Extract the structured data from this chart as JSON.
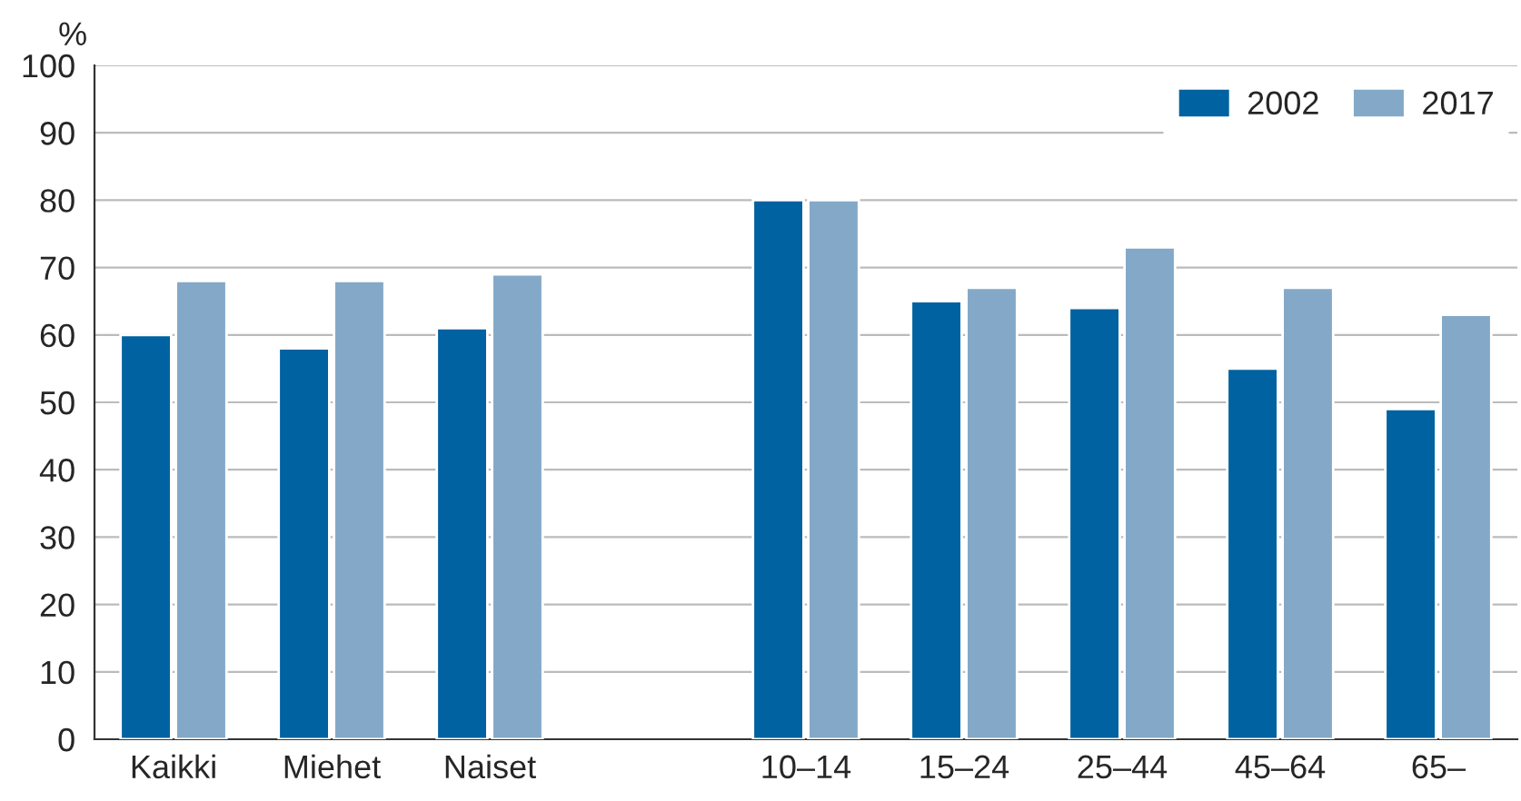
{
  "chart_data": {
    "type": "bar",
    "ylabel": "%",
    "categories": [
      "Kaikki",
      "Miehet",
      "Naiset",
      null,
      "10–14",
      "15–24",
      "25–44",
      "45–64",
      "65–"
    ],
    "series": [
      {
        "name": "2002",
        "color": "#0062a0",
        "values": [
          60,
          58,
          61,
          null,
          80,
          65,
          64,
          55,
          49
        ]
      },
      {
        "name": "2017",
        "color": "#84a9c8",
        "values": [
          68,
          68,
          69,
          null,
          80,
          67,
          73,
          67,
          63
        ]
      }
    ],
    "ylim": [
      0,
      100
    ],
    "yticks": [
      0,
      10,
      20,
      30,
      40,
      50,
      60,
      70,
      80,
      90,
      100
    ],
    "grid": "y",
    "legend": "top right"
  }
}
